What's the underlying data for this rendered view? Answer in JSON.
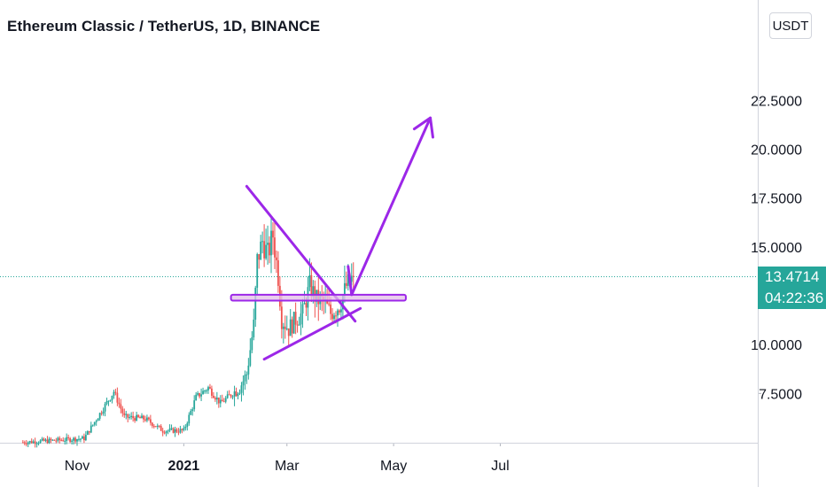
{
  "header": {
    "title": "Ethereum Classic / TetherUS, 1D, BINANCE",
    "currency": "USDT"
  },
  "price_label": {
    "last_price": "13.4714",
    "countdown": "04:22:36",
    "color": "#26a69a"
  },
  "colors": {
    "up": "#26a69a",
    "down": "#ef5350",
    "drawing": "#9c27e8",
    "zone_fill": "#e1bee7",
    "last_price_line": "#26a69a"
  },
  "chart_data": {
    "type": "candlestick",
    "symbol": "ETCUSDT",
    "timeframe": "1D",
    "exchange": "BINANCE",
    "x_ticks": [
      "Nov",
      "2021",
      "Mar",
      "May",
      "Jul"
    ],
    "y_ticks": [
      "7.5000",
      "10.0000",
      "15.0000",
      "17.5000",
      "20.0000",
      "22.5000"
    ],
    "ylim": [
      5.25,
      26.5
    ],
    "last_price": 13.4714,
    "grid": false,
    "series": [
      {
        "name": "ETCUSDT",
        "ohlc_monthly_approx": [
          {
            "period": "Oct 2020",
            "open": 5.0,
            "high": 5.6,
            "low": 4.9,
            "close": 5.3
          },
          {
            "period": "Nov 2020",
            "open": 5.3,
            "high": 7.9,
            "low": 5.0,
            "close": 6.4
          },
          {
            "period": "Dec 2020",
            "open": 6.4,
            "high": 7.2,
            "low": 5.4,
            "close": 5.6
          },
          {
            "period": "Jan 2021",
            "open": 5.6,
            "high": 10.0,
            "low": 5.5,
            "close": 7.3
          },
          {
            "period": "Feb 2021",
            "open": 7.3,
            "high": 17.8,
            "low": 7.0,
            "close": 12.3
          },
          {
            "period": "Mar 2021",
            "open": 12.3,
            "high": 14.0,
            "low": 9.6,
            "close": 11.8
          },
          {
            "period": "Apr 2021",
            "open": 11.8,
            "high": 13.7,
            "low": 11.5,
            "close": 13.47
          }
        ]
      }
    ],
    "annotations": [
      {
        "type": "line",
        "label": "descending trendline",
        "from": [
          "2021-02-06",
          18.1
        ],
        "to": [
          "2021-04-09",
          11.2
        ]
      },
      {
        "type": "line",
        "label": "ascending trendline",
        "from": [
          "2021-02-16",
          9.25
        ],
        "to": [
          "2021-04-12",
          11.85
        ]
      },
      {
        "type": "rectangle",
        "label": "support zone",
        "from": [
          "2021-01-28",
          12.55
        ],
        "to": [
          "2021-05-08",
          12.25
        ]
      },
      {
        "type": "arrow",
        "label": "projected move",
        "path": [
          [
            "2021-04-05",
            14.0
          ],
          [
            "2021-04-07",
            12.55
          ],
          [
            "2021-05-22",
            21.6
          ]
        ]
      }
    ]
  }
}
